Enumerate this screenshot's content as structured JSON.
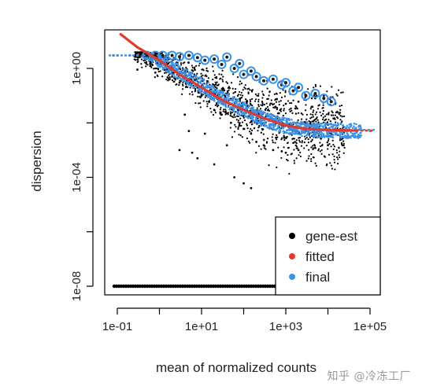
{
  "watermark": "知乎 @冷冻工厂",
  "chart_data": {
    "type": "scatter",
    "title": "",
    "xlabel": "mean of normalized counts",
    "ylabel": "dispersion",
    "x_scale": "log10",
    "y_scale": "log10",
    "xlim": [
      0.05,
      200000
    ],
    "ylim": [
      5e-09,
      30
    ],
    "x_ticks": [
      0.1,
      10,
      1000,
      100000
    ],
    "x_tick_labels": [
      "1e-01",
      "1e+01",
      "1e+03",
      "1e+05"
    ],
    "y_ticks": [
      1e-08,
      0.0001,
      1
    ],
    "y_tick_labels": [
      "1e-08",
      "1e-04",
      "1e+00"
    ],
    "y_minor_ticks": [
      1e-06,
      0.01
    ],
    "grid": false,
    "legend_position": "bottom-right",
    "colors": {
      "gene-est": "#000000",
      "fitted": "#e03a2f",
      "final": "#3a93e8",
      "outlier_ring": "#3a93e8"
    },
    "series": [
      {
        "name": "gene-est",
        "description_points": "dense cloud; low-count genes at dispersion floor 1e-08",
        "points": [
          [
            0.12,
            1e-08
          ],
          [
            0.5,
            1e-08
          ],
          [
            2,
            1e-08
          ],
          [
            10,
            1e-08
          ],
          [
            50,
            1e-08
          ],
          [
            200,
            1e-08
          ],
          [
            400,
            1e-08
          ],
          [
            0.3,
            0.9
          ],
          [
            0.8,
            0.7
          ],
          [
            2,
            0.5
          ],
          [
            3,
            0.3
          ],
          [
            4,
            0.02
          ],
          [
            5,
            0.005
          ],
          [
            8,
            0.2
          ],
          [
            10,
            0.1
          ],
          [
            15,
            0.06
          ],
          [
            20,
            0.03
          ],
          [
            30,
            0.02
          ],
          [
            50,
            0.01
          ],
          [
            80,
            0.008
          ],
          [
            100,
            0.006
          ],
          [
            150,
            0.004
          ],
          [
            200,
            0.002
          ],
          [
            300,
            0.0015
          ],
          [
            500,
            0.001
          ],
          [
            800,
            0.0009
          ],
          [
            1000,
            0.0008
          ],
          [
            2000,
            0.001
          ],
          [
            5000,
            0.0012
          ],
          [
            10000,
            0.0015
          ],
          [
            20000,
            0.003
          ],
          [
            6,
            0.0008
          ],
          [
            8,
            0.0005
          ],
          [
            20,
            0.0003
          ],
          [
            60,
            0.0001
          ],
          [
            100,
            6e-05
          ],
          [
            150,
            4e-05
          ],
          [
            3,
            0.001
          ],
          [
            12,
            0.004
          ],
          [
            40,
            0.0015
          ],
          [
            1000,
            0.05
          ],
          [
            2000,
            0.06
          ],
          [
            3000,
            0.07
          ],
          [
            5000,
            0.08
          ],
          [
            8000,
            0.1
          ]
        ]
      },
      {
        "name": "fitted",
        "points": [
          [
            0.12,
            18
          ],
          [
            0.3,
            6
          ],
          [
            1,
            2
          ],
          [
            3,
            0.6
          ],
          [
            10,
            0.2
          ],
          [
            30,
            0.07
          ],
          [
            100,
            0.03
          ],
          [
            300,
            0.015
          ],
          [
            1000,
            0.008
          ],
          [
            3000,
            0.006
          ],
          [
            10000,
            0.0055
          ],
          [
            30000,
            0.0053
          ],
          [
            50000,
            0.0052
          ]
        ]
      },
      {
        "name": "final",
        "points": [
          [
            0.08,
            3
          ],
          [
            0.1,
            3
          ],
          [
            0.2,
            3
          ],
          [
            0.3,
            3
          ],
          [
            0.3,
            3
          ],
          [
            0.5,
            2.5
          ],
          [
            1,
            1.5
          ],
          [
            2,
            0.8
          ],
          [
            3,
            0.6
          ],
          [
            5,
            0.35
          ],
          [
            10,
            0.18
          ],
          [
            20,
            0.1
          ],
          [
            50,
            0.05
          ],
          [
            100,
            0.03
          ],
          [
            200,
            0.02
          ],
          [
            500,
            0.012
          ],
          [
            1000,
            0.009
          ],
          [
            3000,
            0.007
          ],
          [
            10000,
            0.006
          ],
          [
            30000,
            0.0055
          ],
          [
            100000,
            0.005
          ]
        ],
        "outliers": [
          [
            0.5,
            3
          ],
          [
            0.8,
            3
          ],
          [
            1.2,
            3
          ],
          [
            2,
            3
          ],
          [
            3,
            2.7
          ],
          [
            5,
            3
          ],
          [
            8,
            2.5
          ],
          [
            12,
            2.0
          ],
          [
            20,
            2.2
          ],
          [
            30,
            1.4
          ],
          [
            40,
            2.6
          ],
          [
            60,
            1.0
          ],
          [
            80,
            1.5
          ],
          [
            100,
            0.6
          ],
          [
            150,
            0.8
          ],
          [
            200,
            0.5
          ],
          [
            300,
            0.35
          ],
          [
            500,
            0.4
          ],
          [
            800,
            0.25
          ],
          [
            1000,
            0.3
          ],
          [
            1500,
            0.15
          ],
          [
            2000,
            0.2
          ],
          [
            3000,
            0.1
          ],
          [
            5000,
            0.12
          ],
          [
            8000,
            0.08
          ],
          [
            12000,
            0.06
          ]
        ]
      }
    ]
  },
  "legend": {
    "entries": [
      {
        "label": "gene-est",
        "color": "#000000"
      },
      {
        "label": "fitted",
        "color": "#e03a2f"
      },
      {
        "label": "final",
        "color": "#3a93e8"
      }
    ]
  }
}
